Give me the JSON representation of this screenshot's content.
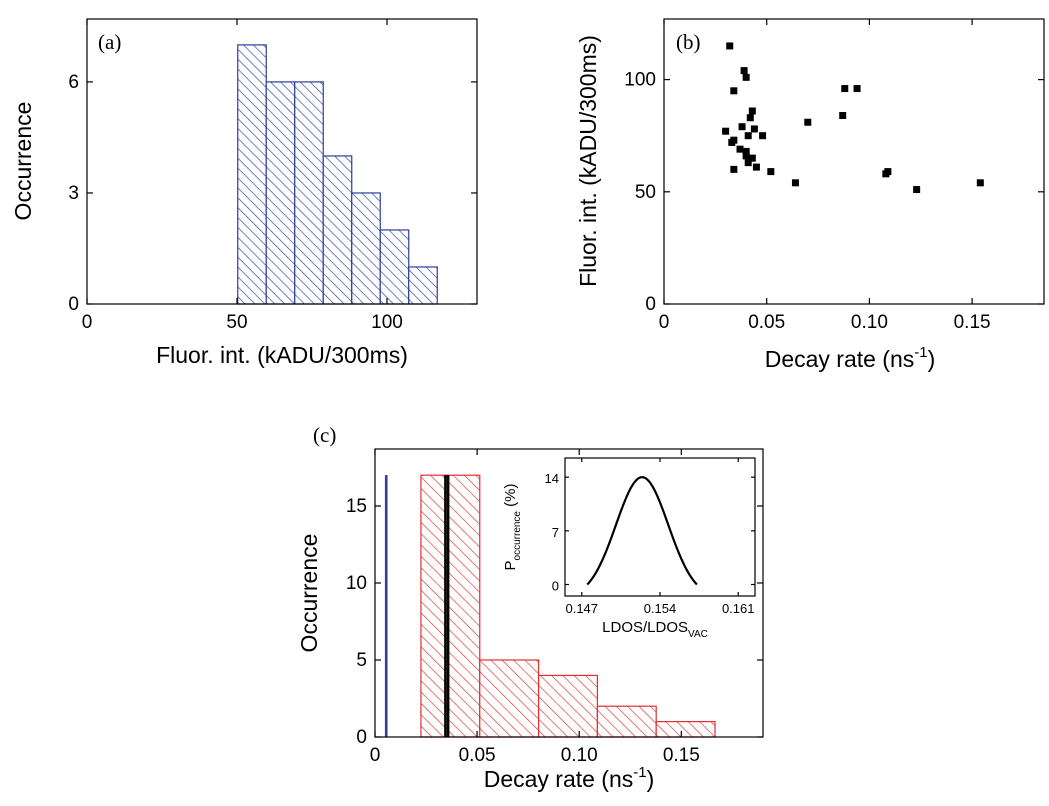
{
  "colors": {
    "blue": "#2b3f9b",
    "red": "#e03030",
    "black": "#000000"
  },
  "chart_data": [
    {
      "id": "a",
      "panel_label": "(a)",
      "type": "bar",
      "hatch": "diagonal",
      "color": "#2b3f9b",
      "xlabel": "Fluor. int. (kADU/300ms)",
      "ylabel": "Occurrence",
      "xlim": [
        0,
        130
      ],
      "ylim": [
        0,
        7.7
      ],
      "xticks": [
        0,
        50,
        100
      ],
      "xtick_labels": [
        "0",
        "50",
        "100"
      ],
      "yticks": [
        0,
        3,
        6
      ],
      "ytick_labels": [
        "0",
        "3",
        "6"
      ],
      "bin_width": 9.5,
      "bins": [
        {
          "x": 55,
          "y": 7
        },
        {
          "x": 64.5,
          "y": 6
        },
        {
          "x": 74,
          "y": 6
        },
        {
          "x": 83.5,
          "y": 4
        },
        {
          "x": 93,
          "y": 3
        },
        {
          "x": 102.5,
          "y": 2
        },
        {
          "x": 112,
          "y": 1
        }
      ]
    },
    {
      "id": "b",
      "panel_label": "(b)",
      "type": "scatter",
      "xlabel": "Decay rate (ns",
      "xlabel_sup": "-1",
      "xlabel_end": ")",
      "ylabel": "Fluor. int. (kADU/300ms)",
      "xlim": [
        0,
        0.185
      ],
      "ylim": [
        0,
        127
      ],
      "xticks": [
        0,
        0.05,
        0.1,
        0.15
      ],
      "xtick_labels": [
        "0",
        "0.05",
        "0.10",
        "0.15"
      ],
      "yticks": [
        0,
        50,
        100
      ],
      "ytick_labels": [
        "0",
        "50",
        "100"
      ],
      "points": [
        [
          0.032,
          115
        ],
        [
          0.03,
          77
        ],
        [
          0.033,
          72
        ],
        [
          0.034,
          95
        ],
        [
          0.034,
          73
        ],
        [
          0.034,
          60
        ],
        [
          0.037,
          69
        ],
        [
          0.038,
          79
        ],
        [
          0.039,
          104
        ],
        [
          0.04,
          101
        ],
        [
          0.04,
          68
        ],
        [
          0.04,
          66
        ],
        [
          0.041,
          75
        ],
        [
          0.041,
          63
        ],
        [
          0.042,
          83
        ],
        [
          0.043,
          86
        ],
        [
          0.043,
          65
        ],
        [
          0.044,
          78
        ],
        [
          0.045,
          61
        ],
        [
          0.048,
          75
        ],
        [
          0.052,
          59
        ],
        [
          0.064,
          54
        ],
        [
          0.07,
          81
        ],
        [
          0.087,
          84
        ],
        [
          0.088,
          96
        ],
        [
          0.094,
          96
        ],
        [
          0.108,
          58
        ],
        [
          0.109,
          59
        ],
        [
          0.123,
          51
        ],
        [
          0.154,
          54
        ]
      ]
    },
    {
      "id": "c",
      "panel_label": "(c)",
      "type": "bar",
      "hatch": "diagonal",
      "color": "#e03030",
      "xlabel": "Decay rate (ns",
      "xlabel_sup": "-1",
      "xlabel_end": ")",
      "ylabel": "Occurrence",
      "xlim": [
        0,
        0.19
      ],
      "ylim": [
        0,
        18.7
      ],
      "xticks": [
        0,
        0.05,
        0.1,
        0.15
      ],
      "xtick_labels": [
        "0",
        "0.05",
        "0.10",
        "0.15"
      ],
      "yticks": [
        0,
        5,
        10,
        15
      ],
      "ytick_labels": [
        "0",
        "5",
        "10",
        "15"
      ],
      "bin_width": 0.0288,
      "bins": [
        {
          "x": 0.0369,
          "y": 17
        },
        {
          "x": 0.0657,
          "y": 5
        },
        {
          "x": 0.0945,
          "y": 4
        },
        {
          "x": 0.1233,
          "y": 2
        },
        {
          "x": 0.1521,
          "y": 1
        }
      ],
      "vlines": [
        {
          "x": 0.0055,
          "y": 17,
          "color": "#2b3f9b"
        },
        {
          "x": 0.0345,
          "y": 17,
          "color": "#000000"
        },
        {
          "x": 0.0358,
          "y": 17,
          "color": "#000000"
        }
      ],
      "inset": {
        "type": "line",
        "xlabel": "LDOS/LDOS",
        "xlabel_sub": "VAC",
        "ylabel": "P",
        "ylabel_sub": "occurrence",
        "ylabel_end": " (%)",
        "xlim": [
          0.1455,
          0.1625
        ],
        "ylim": [
          -1.5,
          16.5
        ],
        "xticks": [
          0.147,
          0.154,
          0.161
        ],
        "xtick_labels": [
          "0.147",
          "0.154",
          "0.161"
        ],
        "yticks": [
          0,
          7,
          14
        ],
        "ytick_labels": [
          "0",
          "7",
          "14"
        ],
        "peak_x": 0.1524,
        "peak_y": 14,
        "x_start": 0.1475,
        "x_end": 0.1573
      }
    }
  ]
}
